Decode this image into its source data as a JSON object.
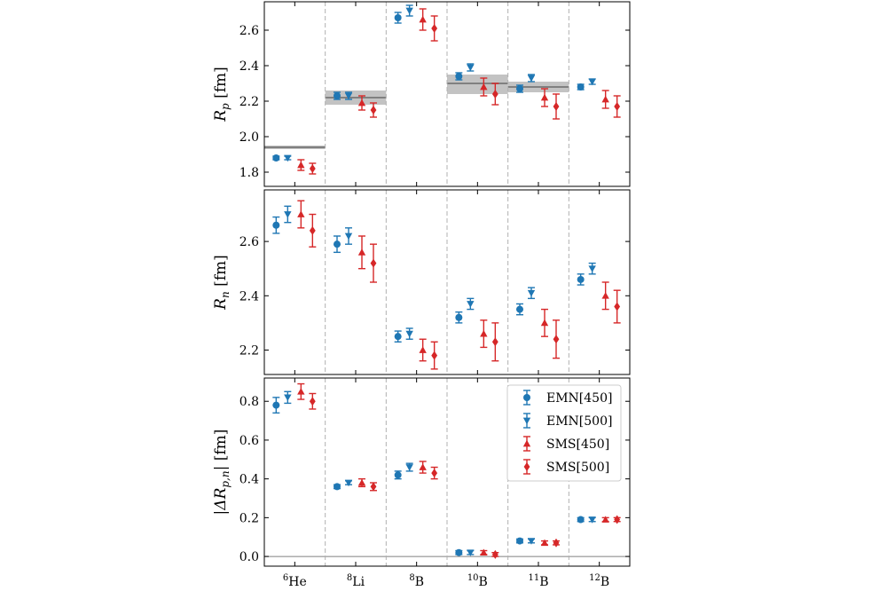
{
  "colors": {
    "EMN[450]": "#1f77b4",
    "EMN[500]": "#1f77b4",
    "SMS[450]": "#d62728",
    "SMS[500]": "#d62728",
    "band": "#aaaaaa",
    "bandline": "#808080",
    "separator": "#b0b0b0"
  },
  "chart_data": [
    {
      "type": "scatter",
      "ylabel": "R_p [fm]",
      "ylabel_parts": {
        "main": "R",
        "sub": "p",
        "unit": "[fm]"
      },
      "ylim": [
        1.72,
        2.76
      ],
      "yticks": [
        1.8,
        2.0,
        2.2,
        2.4,
        2.6
      ],
      "ytick_labels": [
        "1.8",
        "2.0",
        "2.2",
        "2.4",
        "2.6"
      ],
      "categories": [
        "6He",
        "8Li",
        "8B",
        "10B",
        "11B",
        "12B"
      ],
      "series": [
        {
          "name": "EMN[450]",
          "marker": "circle",
          "values": [
            1.88,
            2.23,
            2.67,
            2.34,
            2.27,
            2.28
          ],
          "errors": [
            0.01,
            0.02,
            0.03,
            0.02,
            0.02,
            0.015
          ]
        },
        {
          "name": "EMN[500]",
          "marker": "triangle-down",
          "values": [
            1.88,
            2.23,
            2.71,
            2.39,
            2.33,
            2.31
          ],
          "errors": [
            0.01,
            0.02,
            0.03,
            0.02,
            0.02,
            0.015
          ]
        },
        {
          "name": "SMS[450]",
          "marker": "triangle-up",
          "values": [
            1.84,
            2.19,
            2.66,
            2.28,
            2.22,
            2.21
          ],
          "errors": [
            0.03,
            0.04,
            0.06,
            0.05,
            0.05,
            0.05
          ]
        },
        {
          "name": "SMS[500]",
          "marker": "diamond",
          "values": [
            1.82,
            2.15,
            2.61,
            2.24,
            2.17,
            2.17
          ],
          "errors": [
            0.03,
            0.04,
            0.07,
            0.06,
            0.07,
            0.06
          ]
        }
      ],
      "bands": [
        {
          "category": "6He",
          "value": 1.94,
          "low": 1.93,
          "high": 1.95
        },
        {
          "category": "8Li",
          "value": 2.22,
          "low": 2.18,
          "high": 2.26
        },
        {
          "category": "10B",
          "value": 2.3,
          "low": 2.24,
          "high": 2.35
        },
        {
          "category": "11B",
          "value": 2.28,
          "low": 2.25,
          "high": 2.31
        }
      ]
    },
    {
      "type": "scatter",
      "ylabel": "R_n [fm]",
      "ylabel_parts": {
        "main": "R",
        "sub": "n",
        "unit": "[fm]"
      },
      "ylim": [
        2.11,
        2.79
      ],
      "yticks": [
        2.2,
        2.4,
        2.6
      ],
      "ytick_labels": [
        "2.2",
        "2.4",
        "2.6"
      ],
      "categories": [
        "6He",
        "8Li",
        "8B",
        "10B",
        "11B",
        "12B"
      ],
      "series": [
        {
          "name": "EMN[450]",
          "marker": "circle",
          "values": [
            2.66,
            2.59,
            2.25,
            2.32,
            2.35,
            2.46
          ],
          "errors": [
            0.03,
            0.03,
            0.02,
            0.02,
            0.02,
            0.02
          ]
        },
        {
          "name": "EMN[500]",
          "marker": "triangle-down",
          "values": [
            2.7,
            2.62,
            2.26,
            2.37,
            2.41,
            2.5
          ],
          "errors": [
            0.03,
            0.03,
            0.02,
            0.02,
            0.02,
            0.02
          ]
        },
        {
          "name": "SMS[450]",
          "marker": "triangle-up",
          "values": [
            2.7,
            2.56,
            2.2,
            2.26,
            2.3,
            2.4
          ],
          "errors": [
            0.05,
            0.06,
            0.04,
            0.05,
            0.05,
            0.05
          ]
        },
        {
          "name": "SMS[500]",
          "marker": "diamond",
          "values": [
            2.64,
            2.52,
            2.18,
            2.23,
            2.24,
            2.36
          ],
          "errors": [
            0.06,
            0.07,
            0.05,
            0.07,
            0.07,
            0.06
          ]
        }
      ]
    },
    {
      "type": "scatter",
      "ylabel": "|ΔR_p,n| [fm]",
      "ylabel_parts": {
        "prefix": "|ΔR",
        "sub": "p,n",
        "suffix": "|",
        "unit": "[fm]"
      },
      "ylim": [
        -0.05,
        0.92
      ],
      "yticks": [
        0.0,
        0.2,
        0.4,
        0.6,
        0.8
      ],
      "ytick_labels": [
        "0.0",
        "0.2",
        "0.4",
        "0.6",
        "0.8"
      ],
      "categories": [
        "6He",
        "8Li",
        "8B",
        "10B",
        "11B",
        "12B"
      ],
      "category_labels": [
        {
          "mass": "6",
          "element": "He"
        },
        {
          "mass": "8",
          "element": "Li"
        },
        {
          "mass": "8",
          "element": "B"
        },
        {
          "mass": "10",
          "element": "B"
        },
        {
          "mass": "11",
          "element": "B"
        },
        {
          "mass": "12",
          "element": "B"
        }
      ],
      "series": [
        {
          "name": "EMN[450]",
          "marker": "circle",
          "values": [
            0.78,
            0.36,
            0.42,
            0.02,
            0.08,
            0.19
          ],
          "errors": [
            0.04,
            0.01,
            0.02,
            0.01,
            0.01,
            0.01
          ]
        },
        {
          "name": "EMN[500]",
          "marker": "triangle-down",
          "values": [
            0.82,
            0.38,
            0.46,
            0.02,
            0.08,
            0.19
          ],
          "errors": [
            0.03,
            0.01,
            0.02,
            0.01,
            0.01,
            0.01
          ]
        },
        {
          "name": "SMS[450]",
          "marker": "triangle-up",
          "values": [
            0.85,
            0.38,
            0.46,
            0.02,
            0.07,
            0.19
          ],
          "errors": [
            0.04,
            0.02,
            0.03,
            0.01,
            0.01,
            0.01
          ]
        },
        {
          "name": "SMS[500]",
          "marker": "diamond",
          "values": [
            0.8,
            0.36,
            0.43,
            0.01,
            0.07,
            0.19
          ],
          "errors": [
            0.04,
            0.02,
            0.03,
            0.01,
            0.01,
            0.01
          ]
        }
      ],
      "reference_line": 0.0,
      "legend": {
        "position": "top-right",
        "entries": [
          "EMN[450]",
          "EMN[500]",
          "SMS[450]",
          "SMS[500]"
        ]
      }
    }
  ]
}
